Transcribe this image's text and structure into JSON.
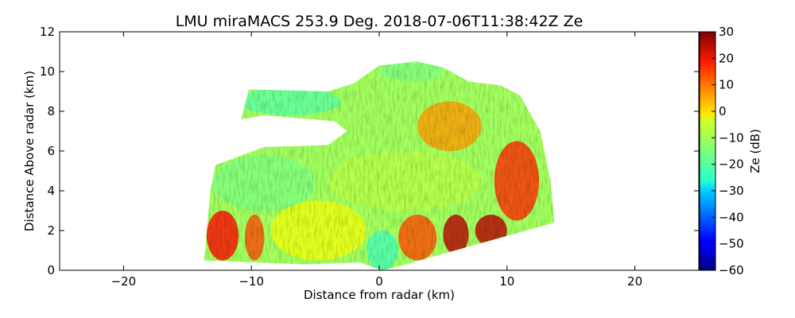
{
  "chart_data": {
    "type": "heatmap",
    "title": "LMU miraMACS 253.9 Deg. 2018-07-06T11:38:42Z  Ze",
    "xlabel": "Distance from radar (km)",
    "ylabel": "Distance Above radar  (km)",
    "xlim": [
      -25,
      25
    ],
    "ylim": [
      0,
      12
    ],
    "xticks": [
      -20,
      -10,
      0,
      10,
      20
    ],
    "xtick_labels": [
      "−20",
      "−10",
      "0",
      "10",
      "20"
    ],
    "yticks": [
      0,
      2,
      4,
      6,
      8,
      10,
      12
    ],
    "ytick_labels": [
      "0",
      "2",
      "4",
      "6",
      "8",
      "10",
      "12"
    ],
    "grid": false,
    "colormap": "jet",
    "colorbar": {
      "label": "Ze (dB)",
      "range": [
        -60,
        30
      ],
      "ticks": [
        30,
        20,
        10,
        0,
        -10,
        -20,
        -30,
        -40,
        -50,
        -60
      ],
      "tick_labels": [
        "30",
        "20",
        "10",
        "0",
        "−10",
        "−20",
        "−30",
        "−40",
        "−50",
        "−60"
      ]
    },
    "regions": [
      {
        "x": [
          -13.5,
          -11.0
        ],
        "y": [
          0.5,
          3.0
        ],
        "ze": 18
      },
      {
        "x": [
          -10.5,
          -9.0
        ],
        "y": [
          0.5,
          2.8
        ],
        "ze": 12
      },
      {
        "x": [
          -8.5,
          -1.0
        ],
        "y": [
          0.5,
          3.5
        ],
        "ze": -5
      },
      {
        "x": [
          -1.0,
          1.5
        ],
        "y": [
          0.0,
          2.0
        ],
        "ze": -20
      },
      {
        "x": [
          1.5,
          4.5
        ],
        "y": [
          0.5,
          2.8
        ],
        "ze": 12
      },
      {
        "x": [
          5.0,
          7.0
        ],
        "y": [
          0.8,
          2.8
        ],
        "ze": 25
      },
      {
        "x": [
          7.5,
          10.0
        ],
        "y": [
          1.2,
          2.8
        ],
        "ze": 25
      },
      {
        "x": [
          9.0,
          12.5
        ],
        "y": [
          2.5,
          6.5
        ],
        "ze": 15
      },
      {
        "x": [
          3.0,
          8.0
        ],
        "y": [
          6.0,
          8.5
        ],
        "ze": 5
      },
      {
        "x": [
          -13.0,
          -5.0
        ],
        "y": [
          3.0,
          5.8
        ],
        "ze": -15
      },
      {
        "x": [
          -4.0,
          8.0
        ],
        "y": [
          3.0,
          6.0
        ],
        "ze": -10
      },
      {
        "x": [
          -11.0,
          -3.0
        ],
        "y": [
          7.8,
          9.2
        ],
        "ze": -18
      },
      {
        "x": [
          0.0,
          5.0
        ],
        "y": [
          9.5,
          10.5
        ],
        "ze": -15
      }
    ]
  },
  "colors": {
    "background": "#ffffff",
    "axes": "#000000"
  }
}
